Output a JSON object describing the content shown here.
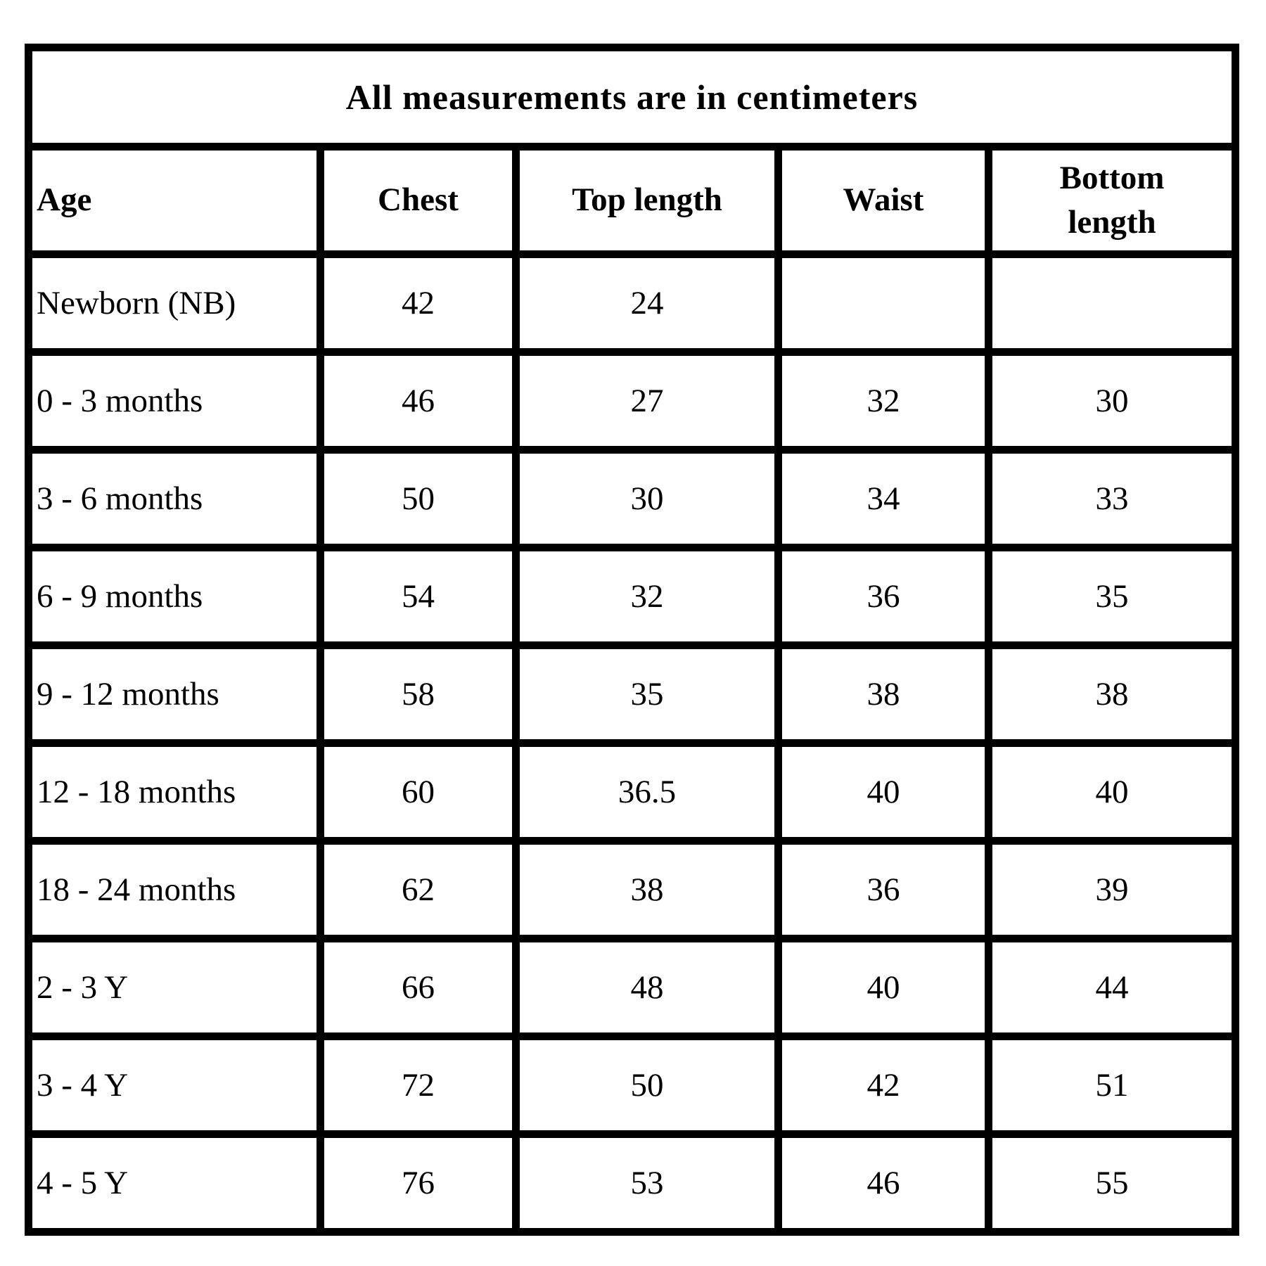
{
  "chart_data": {
    "type": "table",
    "title": "All measurements are in centimeters",
    "columns": [
      "Age",
      "Chest",
      "Top length",
      "Waist",
      "Bottom length"
    ],
    "rows": [
      [
        "Newborn (NB)",
        "42",
        "24",
        "",
        ""
      ],
      [
        "0 - 3 months",
        "46",
        "27",
        "32",
        "30"
      ],
      [
        "3 - 6 months",
        "50",
        "30",
        "34",
        "33"
      ],
      [
        "6 - 9 months",
        "54",
        "32",
        "36",
        "35"
      ],
      [
        "9 - 12 months",
        "58",
        "35",
        "38",
        "38"
      ],
      [
        "12 - 18 months",
        "60",
        "36.5",
        "40",
        "40"
      ],
      [
        "18 - 24 months",
        "62",
        "38",
        "36",
        "39"
      ],
      [
        "2 - 3 Y",
        "66",
        "48",
        "40",
        "44"
      ],
      [
        "3 - 4 Y",
        "72",
        "50",
        "42",
        "51"
      ],
      [
        "4 - 5 Y",
        "76",
        "53",
        "46",
        "55"
      ]
    ],
    "layout": {
      "grid": "on",
      "title_position": "top-spanning-row",
      "age_column_alignment": "left",
      "value_alignment": "center"
    },
    "colors": {
      "border": "#000000",
      "background": "#ffffff",
      "text": "#000000"
    }
  }
}
